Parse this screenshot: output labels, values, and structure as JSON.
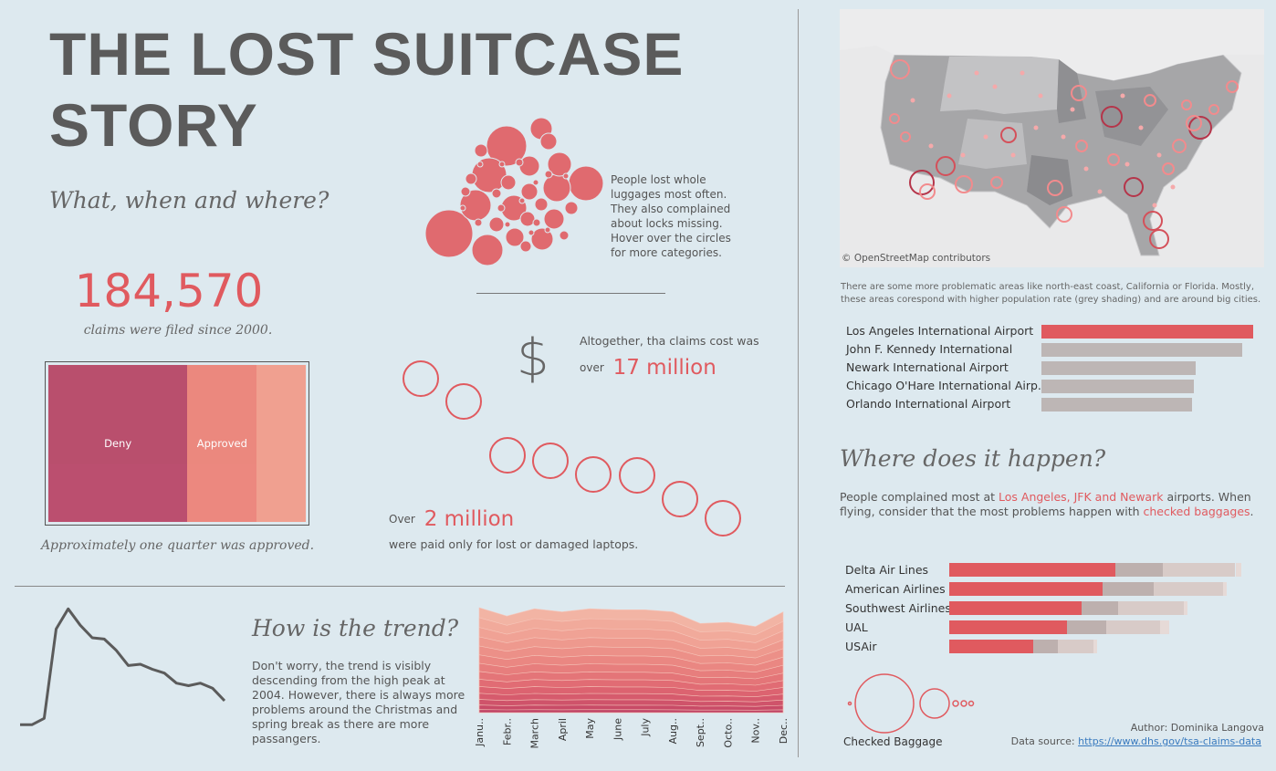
{
  "header": {
    "title_line1": "THE LOST SUITCASE",
    "title_line2": "STORY",
    "subtitle": "What, when and where?"
  },
  "claims": {
    "total": "184,570",
    "caption": "claims were filed since 2000.",
    "treemap_caption": "Approximately one quarter was approved.",
    "treemap": [
      {
        "label": "Deny",
        "share": 0.54,
        "color": "#b84767"
      },
      {
        "label": "Approved",
        "share": 0.27,
        "color": "#ec8378"
      },
      {
        "label": "",
        "share": 0.19,
        "color": "#f09c8a"
      }
    ]
  },
  "bubbles_note": "People lost whole luggages most often. They also complained about locks missing. Hover over the circles for more categories.",
  "cost": {
    "symbol": "$",
    "line1": "Altogether, tha claims cost was",
    "over_prefix": "over",
    "amount": "17 million",
    "over2_prefix": "Over",
    "laptop_amount": "2 million",
    "laptop_caption": "were paid only for lost or damaged laptops."
  },
  "map": {
    "attribution": "© OpenStreetMap contributors",
    "note": "There are some more problematic areas like north-east coast, California or Florida. Mostly, these areas corespond with higher population rate (grey shading) and are around big cities."
  },
  "where": {
    "heading": "Where does it happen?",
    "text_a": "People complained most at ",
    "text_highlight_1": "Los Angeles, JFK and Newark",
    "text_b": " airports. When flying, consider that the most problems happen with ",
    "text_highlight_2": "checked baggages",
    "text_c": "."
  },
  "trend": {
    "heading": "How is the trend?",
    "text": "Don't worry, the trend is visibly descending from the high peak at 2004. However, there is always more problems around the Christmas and spring break as there are more passangers."
  },
  "legend": {
    "checked_label": "Checked Baggage"
  },
  "footer": {
    "author": "Author: Dominika Langova",
    "source_label": "Data source: ",
    "source_link": "https://www.dhs.gov/tsa-claims-data"
  },
  "chart_data": [
    {
      "type": "bar",
      "name": "airports",
      "categories": [
        "Los Angeles International Airport",
        "John F. Kennedy International",
        "Newark International Airport",
        "Chicago O'Hare International Airp..",
        "Orlando International Airport"
      ],
      "values": [
        100,
        95,
        73,
        72,
        71
      ],
      "highlight_color": "#e05a5f",
      "base_color": "#bdb6b5"
    },
    {
      "type": "bar",
      "name": "airlines",
      "stacked": true,
      "categories": [
        "Delta Air Lines",
        "American Airlines",
        "Southwest Airlines",
        "UAL",
        "USAir"
      ],
      "series": [
        {
          "values": [
            55,
            51,
            44,
            39,
            28
          ],
          "color": "#e05a5f"
        },
        {
          "values": [
            16,
            17,
            12,
            13,
            8
          ],
          "color": "#bdb0ae"
        },
        {
          "values": [
            24,
            23,
            22,
            18,
            12
          ],
          "color": "#d8cbc8"
        },
        {
          "values": [
            2,
            1,
            1,
            3,
            1
          ],
          "color": "#e6dad7"
        }
      ],
      "xlim": [
        0,
        100
      ]
    },
    {
      "type": "line",
      "name": "yearly trend",
      "values": [
        2,
        2,
        7,
        78,
        94,
        81,
        71,
        70,
        61,
        49,
        50,
        46,
        43,
        35,
        33,
        35,
        31,
        21
      ]
    },
    {
      "type": "area",
      "name": "monthly",
      "stacked": true,
      "categories": [
        "Janu..",
        "Febr..",
        "March",
        "April",
        "May",
        "June",
        "July",
        "Aug..",
        "Sept..",
        "Octo..",
        "Nov..",
        "Dec.."
      ],
      "totals": [
        100,
        92,
        99,
        96,
        99,
        98,
        98,
        96,
        85,
        86,
        82,
        96
      ]
    }
  ]
}
